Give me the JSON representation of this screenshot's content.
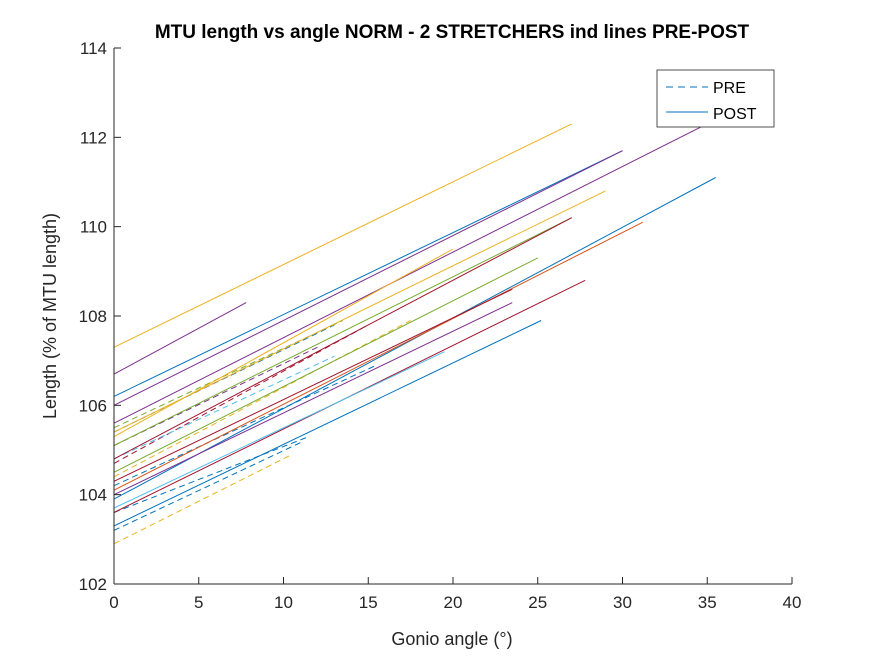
{
  "chart_data": {
    "type": "line",
    "title": "MTU length vs angle NORM - 2 STRETCHERS ind lines PRE-POST",
    "xlabel": "Gonio angle (°)",
    "ylabel": "Length (% of MTU length)",
    "xlim": [
      0,
      40
    ],
    "ylim": [
      102,
      114
    ],
    "xticks": [
      0,
      5,
      10,
      15,
      20,
      25,
      30,
      35,
      40
    ],
    "yticks": [
      102,
      104,
      106,
      108,
      110,
      112,
      114
    ],
    "grid": false,
    "legend": {
      "placement": "top-right",
      "entries": [
        {
          "label": "PRE",
          "style": "dashed",
          "color": "#0072BD"
        },
        {
          "label": "POST",
          "style": "solid",
          "color": "#0072BD"
        }
      ]
    },
    "series": [
      {
        "x": [
          0,
          11.5
        ],
        "y": [
          103.6,
          105.3
        ],
        "style": "dashed",
        "color": "#0072BD"
      },
      {
        "x": [
          0,
          10.5
        ],
        "y": [
          102.9,
          104.9
        ],
        "style": "dashed",
        "color": "#EDB120"
      },
      {
        "x": [
          0,
          11.2
        ],
        "y": [
          103.2,
          105.2
        ],
        "style": "dashed",
        "color": "#0072BD"
      },
      {
        "x": [
          0,
          13.0
        ],
        "y": [
          105.4,
          107.8
        ],
        "style": "dashed",
        "color": "#0072BD"
      },
      {
        "x": [
          0,
          15.0
        ],
        "y": [
          104.7,
          107.8
        ],
        "style": "dashed",
        "color": "#A2142F"
      },
      {
        "x": [
          0,
          17.5
        ],
        "y": [
          104.4,
          107.9
        ],
        "style": "dashed",
        "color": "#EDB120"
      },
      {
        "x": [
          0,
          12.0
        ],
        "y": [
          105.1,
          107.3
        ],
        "style": "dashed",
        "color": "#7E2F8E"
      },
      {
        "x": [
          0,
          13.5
        ],
        "y": [
          105.5,
          107.9
        ],
        "style": "dashed",
        "color": "#77AC30"
      },
      {
        "x": [
          0,
          13.0
        ],
        "y": [
          104.8,
          107.1
        ],
        "style": "dashed",
        "color": "#4DBEEE"
      },
      {
        "x": [
          0,
          15.5
        ],
        "y": [
          104.2,
          106.9
        ],
        "style": "dashed",
        "color": "#0072BD"
      },
      {
        "x": [
          0,
          7.8
        ],
        "y": [
          106.7,
          108.3
        ],
        "style": "solid",
        "color": "#7E2F8E"
      },
      {
        "x": [
          0,
          27.0
        ],
        "y": [
          107.3,
          112.3
        ],
        "style": "solid",
        "color": "#EDB120"
      },
      {
        "x": [
          0,
          30.0
        ],
        "y": [
          106.2,
          111.7
        ],
        "style": "solid",
        "color": "#0072BD"
      },
      {
        "x": [
          0,
          35.5
        ],
        "y": [
          105.6,
          112.4
        ],
        "style": "solid",
        "color": "#7E2F8E"
      },
      {
        "x": [
          0,
          35.5
        ],
        "y": [
          103.9,
          111.1
        ],
        "style": "solid",
        "color": "#0072BD"
      },
      {
        "x": [
          0,
          30.0
        ],
        "y": [
          106.0,
          111.7
        ],
        "style": "solid",
        "color": "#7E2F8E"
      },
      {
        "x": [
          0,
          29.0
        ],
        "y": [
          105.4,
          110.8
        ],
        "style": "solid",
        "color": "#EDB120"
      },
      {
        "x": [
          0,
          27.0
        ],
        "y": [
          105.1,
          110.2
        ],
        "style": "solid",
        "color": "#77AC30"
      },
      {
        "x": [
          0,
          27.0
        ],
        "y": [
          104.8,
          110.2
        ],
        "style": "solid",
        "color": "#A2142F"
      },
      {
        "x": [
          0,
          20.0
        ],
        "y": [
          105.3,
          109.5
        ],
        "style": "solid",
        "color": "#EDB120"
      },
      {
        "x": [
          0,
          31.2
        ],
        "y": [
          104.1,
          110.1
        ],
        "style": "solid",
        "color": "#D95319"
      },
      {
        "x": [
          0,
          25.0
        ],
        "y": [
          104.5,
          109.3
        ],
        "style": "solid",
        "color": "#77AC30"
      },
      {
        "x": [
          0,
          23.5
        ],
        "y": [
          104.3,
          108.6
        ],
        "style": "solid",
        "color": "#A2142F"
      },
      {
        "x": [
          0,
          23.5
        ],
        "y": [
          104.0,
          108.3
        ],
        "style": "solid",
        "color": "#7E2F8E"
      },
      {
        "x": [
          0,
          27.8
        ],
        "y": [
          103.6,
          108.8
        ],
        "style": "solid",
        "color": "#A2142F"
      },
      {
        "x": [
          0,
          19.5
        ],
        "y": [
          103.7,
          107.2
        ],
        "style": "solid",
        "color": "#4DBEEE"
      },
      {
        "x": [
          0,
          25.2
        ],
        "y": [
          103.3,
          107.9
        ],
        "style": "solid",
        "color": "#0072BD"
      }
    ]
  }
}
